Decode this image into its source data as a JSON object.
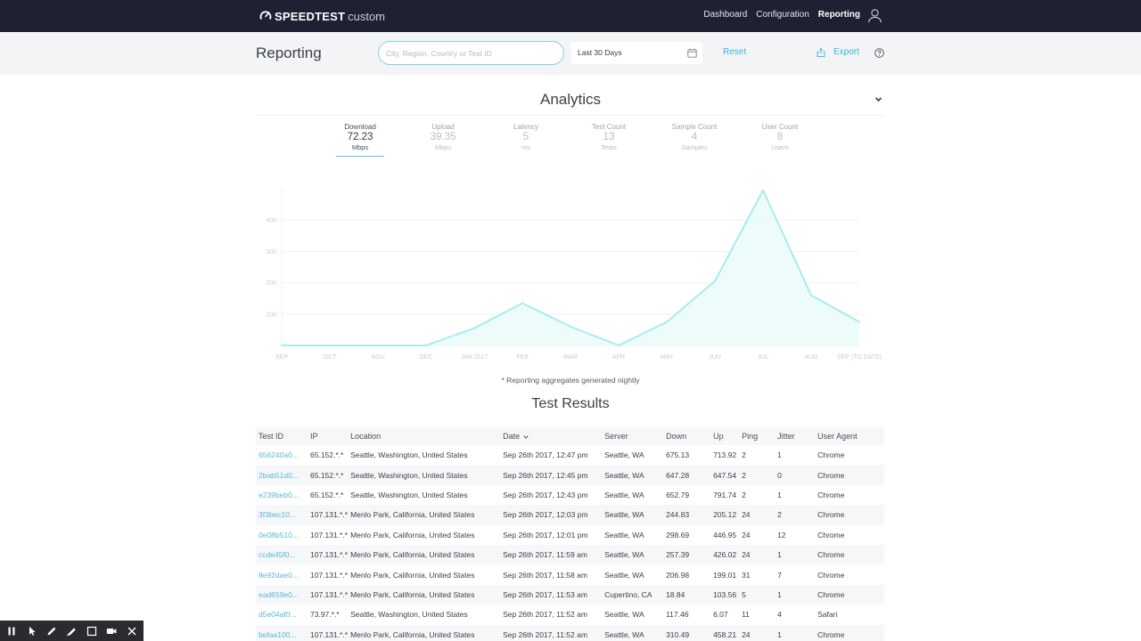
{
  "nav": {
    "brand": "SPEEDTEST",
    "brand_sub": "custom",
    "links": [
      "Dashboard",
      "Configuration",
      "Reporting"
    ]
  },
  "header": {
    "title": "Reporting",
    "search_placeholder": "City, Region, Country or Test ID",
    "date_range": "Last 30 Days",
    "reset_label": "Reset",
    "export_label": "Export"
  },
  "analytics": {
    "title": "Analytics",
    "metrics": [
      {
        "label": "Download",
        "value": "72.23",
        "unit": "Mbps"
      },
      {
        "label": "Upload",
        "value": "39.35",
        "unit": "Mbps"
      },
      {
        "label": "Latency",
        "value": "5",
        "unit": "ms"
      },
      {
        "label": "Test Count",
        "value": "13",
        "unit": "Tests"
      },
      {
        "label": "Sample Count",
        "value": "4",
        "unit": "Samples"
      },
      {
        "label": "User Count",
        "value": "8",
        "unit": "Users"
      }
    ],
    "footnote": "* Reporting aggregates generated nightly"
  },
  "chart_data": {
    "type": "area",
    "categories": [
      "SEP",
      "OCT",
      "NOV",
      "DEC",
      "JAN 2017",
      "FEB",
      "MAR",
      "APR",
      "MAY",
      "JUN",
      "JUL",
      "AUG",
      "SEP (TO DATE)"
    ],
    "values": [
      0,
      0,
      0,
      0,
      55,
      135,
      60,
      0,
      75,
      205,
      495,
      160,
      75
    ],
    "yticks": [
      100,
      200,
      300,
      400
    ],
    "ylim": [
      0,
      500
    ],
    "grid": true,
    "line_color": "#a9ecec",
    "fill_color": "#e8fafa"
  },
  "results": {
    "title": "Test Results",
    "columns": [
      "Test ID",
      "IP",
      "Location",
      "Date",
      "Server",
      "Down",
      "Up",
      "Ping",
      "Jitter",
      "User Agent"
    ],
    "rows": [
      [
        "656240a0...",
        "65.152.*.*",
        "Seattle, Washington, United States",
        "Sep 26th 2017, 12:47 pm",
        "Seattle, WA",
        "675.13",
        "713.92",
        "2",
        "1",
        "Chrome"
      ],
      [
        "2bab51d0...",
        "65.152.*.*",
        "Seattle, Washington, United States",
        "Sep 26th 2017, 12:45 pm",
        "Seattle, WA",
        "647.28",
        "647.54",
        "2",
        "0",
        "Chrome"
      ],
      [
        "e239beb0...",
        "65.152.*.*",
        "Seattle, Washington, United States",
        "Sep 26th 2017, 12:43 pm",
        "Seattle, WA",
        "652.79",
        "791.74",
        "2",
        "1",
        "Chrome"
      ],
      [
        "3f3bec10...",
        "107.131.*.*",
        "Menlo Park, California, United States",
        "Sep 26th 2017, 12:03 pm",
        "Seattle, WA",
        "244.83",
        "205.12",
        "24",
        "2",
        "Chrome"
      ],
      [
        "0e08b510...",
        "107.131.*.*",
        "Menlo Park, California, United States",
        "Sep 26th 2017, 12:01 pm",
        "Seattle, WA",
        "298.69",
        "446.95",
        "24",
        "12",
        "Chrome"
      ],
      [
        "ccde45f0...",
        "107.131.*.*",
        "Menlo Park, California, United States",
        "Sep 26th 2017, 11:59 am",
        "Seattle, WA",
        "257.39",
        "426.02",
        "24",
        "1",
        "Chrome"
      ],
      [
        "8e92dae0...",
        "107.131.*.*",
        "Menlo Park, California, United States",
        "Sep 26th 2017, 11:58 am",
        "Seattle, WA",
        "206.98",
        "199.01",
        "31",
        "7",
        "Chrome"
      ],
      [
        "ead659e0...",
        "107.131.*.*",
        "Menlo Park, California, United States",
        "Sep 26th 2017, 11:53 am",
        "Cupertino, CA",
        "18.84",
        "103.56",
        "5",
        "1",
        "Chrome"
      ],
      [
        "d5e04af0...",
        "73.97.*.*",
        "Seattle, Washington, United States",
        "Sep 26th 2017, 11:52 am",
        "Seattle, WA",
        "117.46",
        "6.07",
        "11",
        "4",
        "Safari"
      ],
      [
        "befaa100...",
        "107.131.*.*",
        "Menlo Park, California, United States",
        "Sep 26th 2017, 11:52 am",
        "Seattle, WA",
        "310.49",
        "458.21",
        "24",
        "1",
        "Chrome"
      ]
    ]
  },
  "toolbar": {
    "icons": [
      "pause-icon",
      "pointer-icon",
      "pen-icon",
      "highlighter-icon",
      "rectangle-icon",
      "camera-icon",
      "close-icon"
    ]
  }
}
